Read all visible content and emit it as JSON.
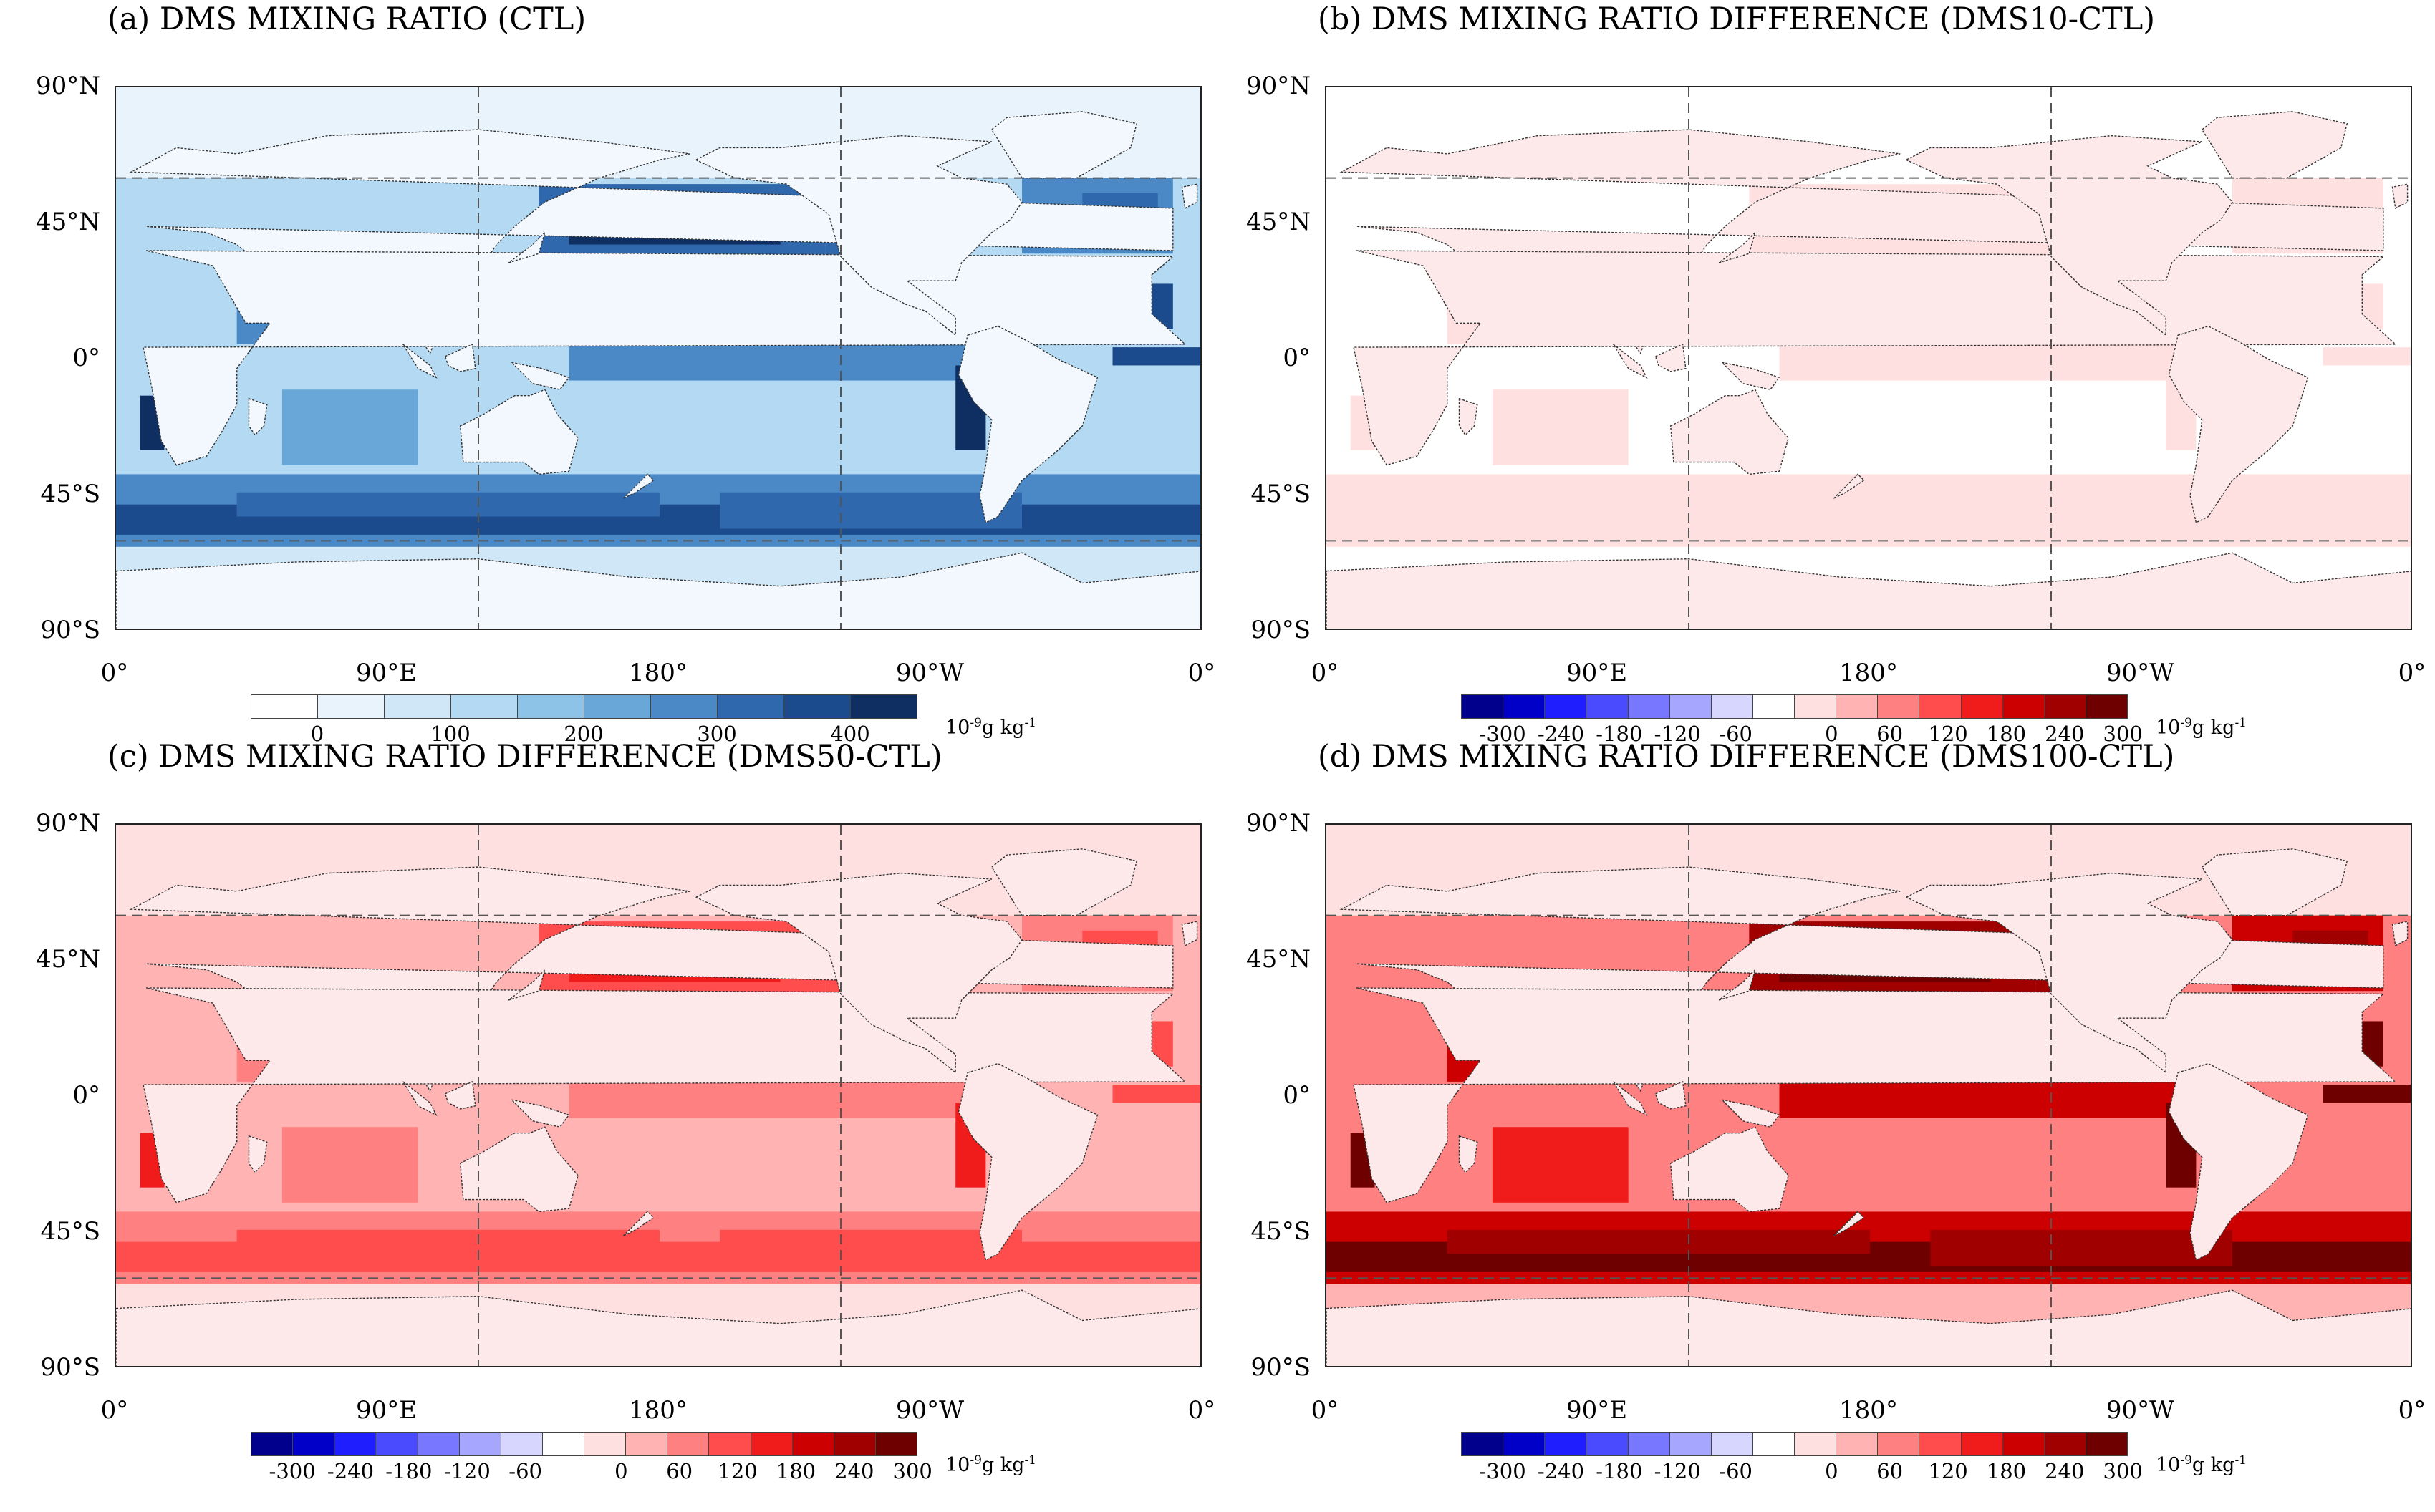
{
  "panels": [
    {
      "id": "a",
      "title": "(a) DMS MIXING RATIO (CTL)",
      "type": "ctl",
      "intensity": 1.0
    },
    {
      "id": "b",
      "title": "(b) DMS MIXING RATIO DIFFERENCE (DMS10-CTL)",
      "type": "diff",
      "intensity": 0.15
    },
    {
      "id": "c",
      "title": "(c) DMS MIXING RATIO DIFFERENCE (DMS50-CTL)",
      "type": "diff",
      "intensity": 0.55
    },
    {
      "id": "d",
      "title": "(d) DMS MIXING RATIO DIFFERENCE (DMS100-CTL)",
      "type": "diff",
      "intensity": 1.0
    }
  ],
  "lat_labels": [
    "90°N",
    "45°N",
    "0°",
    "45°S",
    "90°S"
  ],
  "lon_labels": [
    "0°",
    "90°E",
    "180°",
    "90°W",
    "0°"
  ],
  "colorbar_ctl": {
    "ticks": [
      "0",
      "100",
      "200",
      "300",
      "400"
    ],
    "colors": [
      "#ffffff",
      "#e8f3fc",
      "#cfe7f7",
      "#b3daf2",
      "#8ec3e8",
      "#6aa7d9",
      "#4a88c6",
      "#2f68ad",
      "#1b4b8c",
      "#0f2f63"
    ]
  },
  "colorbar_diff": {
    "ticks": [
      "-300",
      "-240",
      "-180",
      "-120",
      "-60",
      "0",
      "60",
      "120",
      "180",
      "240",
      "300"
    ],
    "colors": [
      "#00008c",
      "#0000c8",
      "#1e1eff",
      "#4a4aff",
      "#7777ff",
      "#a6a6ff",
      "#d6d6ff",
      "#ffffff",
      "#ffe0e0",
      "#ffb3b3",
      "#ff8080",
      "#ff4d4d",
      "#f01c1c",
      "#cc0000",
      "#a00000",
      "#6e0000"
    ]
  },
  "units": {
    "base": "10",
    "exp": "-9",
    "rest": "g kg"
  }
}
